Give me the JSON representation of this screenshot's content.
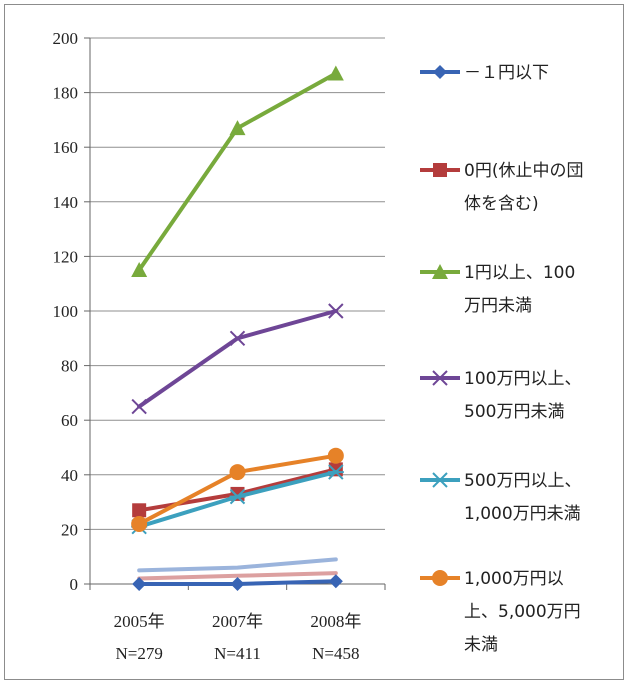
{
  "chart_data": {
    "type": "line",
    "title": "",
    "xlabel": "",
    "ylabel": "",
    "ylim": [
      0,
      200
    ],
    "yticks": [
      0,
      20,
      40,
      60,
      80,
      100,
      120,
      140,
      160,
      180,
      200
    ],
    "grid": true,
    "legend_position": "right",
    "categories": [
      {
        "year": "2005年",
        "n": "N=279"
      },
      {
        "year": "2007年",
        "n": "N=411"
      },
      {
        "year": "2008年",
        "n": "N=458"
      }
    ],
    "series": [
      {
        "name": "－１円以下",
        "legend_lines": [
          "－１円以下"
        ],
        "color": "#3864b4",
        "marker": "diamond",
        "values": [
          0,
          0,
          1
        ]
      },
      {
        "name": "0円(休止中の団体を含む)",
        "legend_lines": [
          "0円(休止中の団",
          "体を含む)"
        ],
        "color": "#b43c3c",
        "marker": "square",
        "values": [
          27,
          33,
          42
        ]
      },
      {
        "name": "1円以上、100万円未満",
        "legend_lines": [
          "1円以上、100",
          "万円未満"
        ],
        "color": "#78aa3c",
        "marker": "triangle",
        "values": [
          115,
          167,
          187
        ]
      },
      {
        "name": "100万円以上、500万円未満",
        "legend_lines": [
          "100万円以上、",
          "500万円未満"
        ],
        "color": "#6e4696",
        "marker": "x",
        "values": [
          65,
          90,
          100
        ]
      },
      {
        "name": "500万円以上、1,000万円未満",
        "legend_lines": [
          "500万円以上、",
          "1,000万円未満"
        ],
        "color": "#3ca0be",
        "marker": "star",
        "values": [
          21,
          32,
          41
        ]
      },
      {
        "name": "1,000万円以上、5,000万円未満",
        "legend_lines": [
          "1,000万円以",
          "上、5,000万円",
          "未満"
        ],
        "color": "#e68228",
        "marker": "circle",
        "values": [
          22,
          41,
          47
        ]
      },
      {
        "name": "",
        "legend_lines": [],
        "color": "#9bb4dc",
        "marker": "none",
        "values": [
          5,
          6,
          9
        ]
      },
      {
        "name": "",
        "legend_lines": [],
        "color": "#dca0a0",
        "marker": "none",
        "values": [
          2,
          3,
          4
        ]
      }
    ]
  }
}
